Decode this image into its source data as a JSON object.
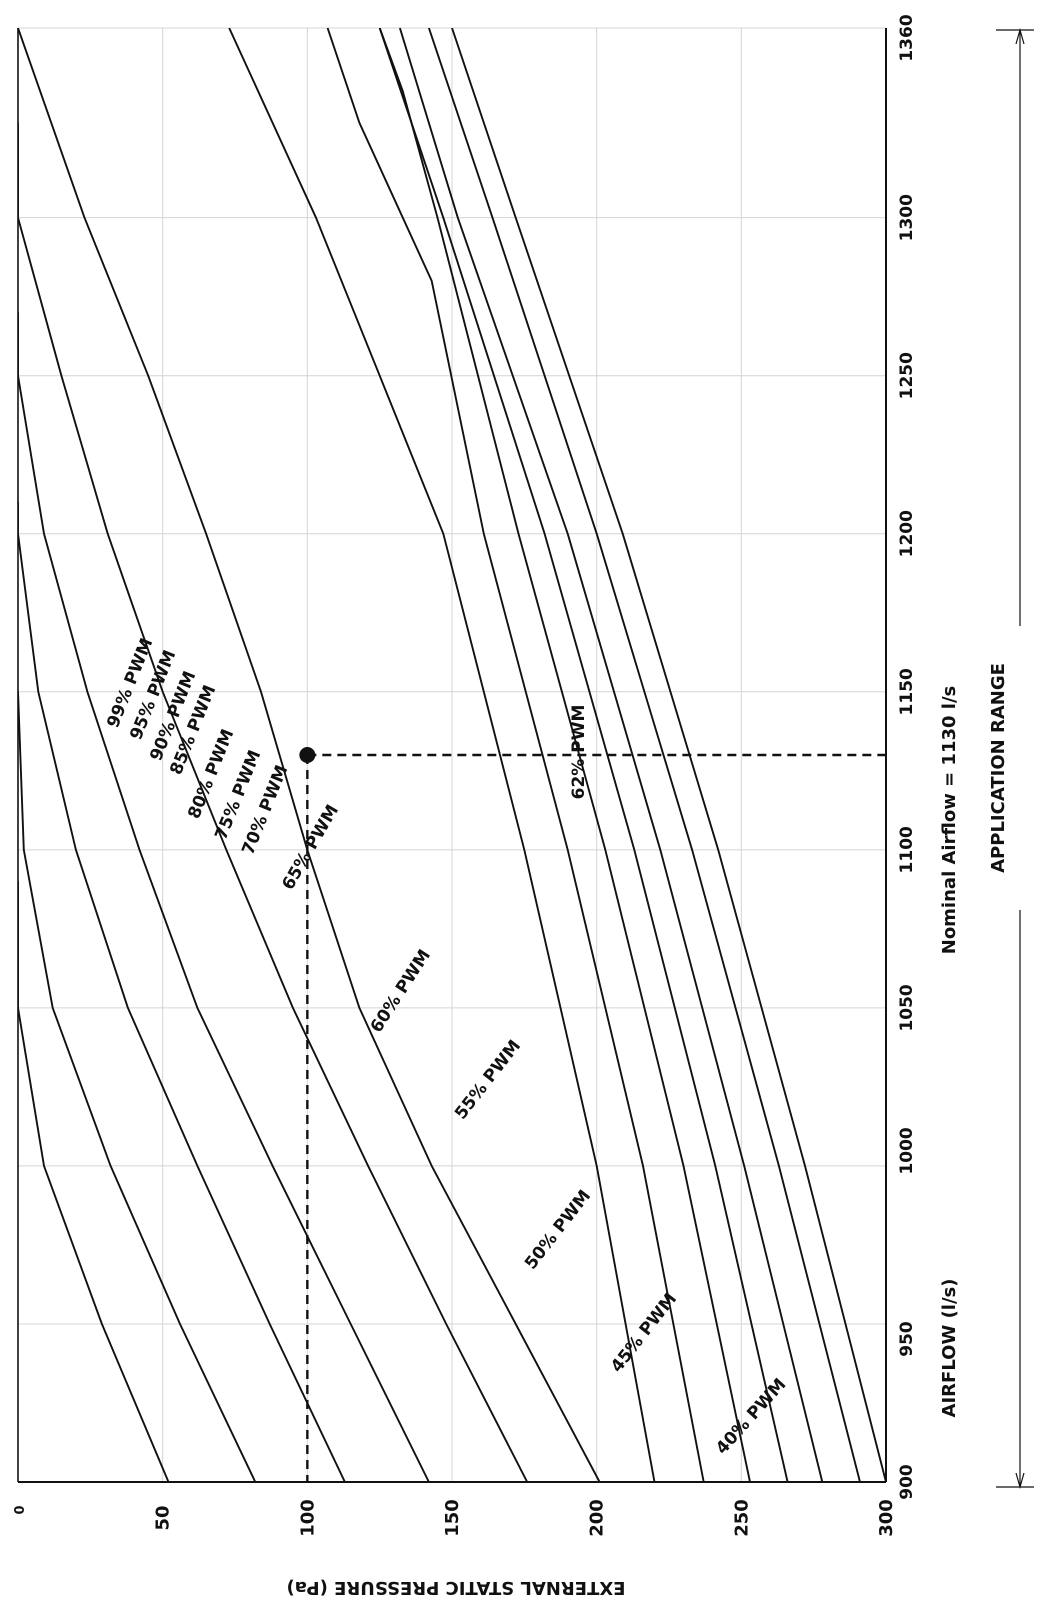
{
  "chart_data": {
    "type": "line",
    "xlabel": "AIRFLOW (l/s)",
    "ylabel": "EXTERNAL STATIC PRESSURE (Pa)",
    "xlim": [
      900,
      1360
    ],
    "ylim": [
      0,
      300
    ],
    "x_ticks": [
      "900",
      "950",
      "1000",
      "1050",
      "1100",
      "1150",
      "1200",
      "1250",
      "1300",
      "1360"
    ],
    "y_ticks": [
      "0",
      "50",
      "100",
      "150",
      "200",
      "250",
      "300"
    ],
    "grid": true,
    "legend": "none",
    "series": [
      {
        "name": "99% PWM",
        "x": [
          900,
          1000,
          1100,
          1200,
          1300,
          1360
        ],
        "y": [
          300,
          272,
          242,
          209,
          172,
          150
        ]
      },
      {
        "name": "95% PWM",
        "x": [
          900,
          1000,
          1100,
          1200,
          1300,
          1360
        ],
        "y": [
          291,
          263,
          233,
          200,
          164,
          142
        ]
      },
      {
        "name": "90% PWM",
        "x": [
          900,
          1000,
          1100,
          1200,
          1300,
          1360
        ],
        "y": [
          278,
          251,
          222,
          190,
          152,
          132
        ]
      },
      {
        "name": "85% PWM",
        "x": [
          900,
          1000,
          1100,
          1200,
          1300,
          1360
        ],
        "y": [
          266,
          241,
          213,
          182,
          147,
          125
        ]
      },
      {
        "name": "80% PWM",
        "x": [
          900,
          1000,
          1100,
          1200,
          1300,
          1340,
          1360
        ],
        "y": [
          253,
          230,
          203,
          173,
          145,
          133,
          125
        ]
      },
      {
        "name": "75% PWM",
        "x": [
          900,
          1000,
          1100,
          1200,
          1280,
          1330,
          1360
        ],
        "y": [
          237,
          216,
          190,
          161,
          143,
          118,
          107
        ]
      },
      {
        "name": "70% PWM",
        "x": [
          900,
          1000,
          1100,
          1200,
          1250,
          1300,
          1360
        ],
        "y": [
          220,
          200,
          175,
          147,
          125,
          103,
          73
        ]
      },
      {
        "name": "65% PWM",
        "x": [
          900,
          950,
          1000,
          1050,
          1100,
          1150,
          1200,
          1250,
          1300,
          1360
        ],
        "y": [
          201,
          172,
          143,
          118,
          100,
          84,
          65,
          45,
          23,
          0
        ]
      },
      {
        "name": "60% PWM",
        "x": [
          900,
          950,
          1000,
          1050,
          1100,
          1150,
          1200,
          1250,
          1300,
          1330
        ],
        "y": [
          176,
          148,
          121,
          95,
          72,
          50,
          31,
          15,
          0,
          0
        ]
      },
      {
        "name": "55% PWM",
        "x": [
          900,
          950,
          1000,
          1050,
          1100,
          1150,
          1200,
          1250,
          1270
        ],
        "y": [
          142,
          115,
          88,
          62,
          42,
          24,
          9,
          0,
          0
        ]
      },
      {
        "name": "50% PWM",
        "x": [
          900,
          950,
          1000,
          1050,
          1100,
          1150,
          1200,
          1210
        ],
        "y": [
          113,
          87,
          62,
          38,
          20,
          7,
          0,
          0
        ]
      },
      {
        "name": "45% PWM",
        "x": [
          900,
          950,
          1000,
          1050,
          1100,
          1150
        ],
        "y": [
          82,
          56,
          32,
          12,
          2,
          0
        ]
      },
      {
        "name": "40% PWM",
        "x": [
          900,
          950,
          1000,
          1050,
          1090
        ],
        "y": [
          52,
          29,
          9,
          0,
          0
        ]
      }
    ],
    "curve_labels": [
      "99% PWM",
      "95% PWM",
      "90% PWM",
      "85% PWM",
      "80% PWM",
      "75% PWM",
      "70% PWM",
      "65% PWM",
      "60% PWM",
      "55% PWM",
      "50% PWM",
      "45% PWM",
      "40% PWM"
    ],
    "operating_point": {
      "x": 1130,
      "y": 100,
      "label": "62% PWM"
    },
    "annotations": {
      "nominal_airflow": "Nominal Airflow = 1130 l/s",
      "application_range": "APPLICATION RANGE"
    },
    "colors": {
      "line": "#111111",
      "grid": "#d4d4d4",
      "background": "#ffffff"
    }
  }
}
